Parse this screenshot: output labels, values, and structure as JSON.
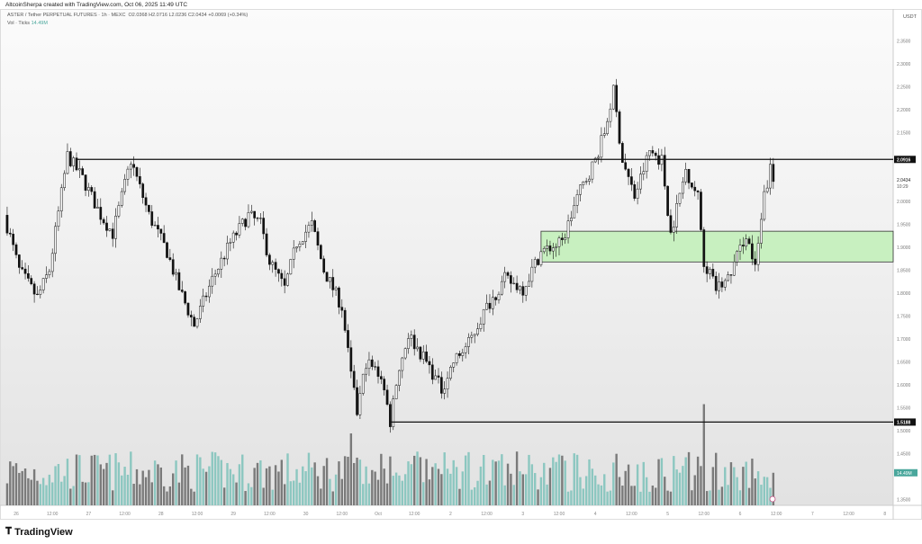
{
  "credit": "AltcoinSherpa created with TradingView.com, Oct 06, 2025 11:49 UTC",
  "legend": {
    "symbol": "ASTER / Tether PERPETUAL FUTURES · 1h · MEXC",
    "o": "O2.0368",
    "h": "H2.0716",
    "l": "L2.0236",
    "c": "C2.0434",
    "change": "+0.0069 (+0.34%)",
    "vol_label": "Vol · Ticks",
    "vol_value": "14.49M"
  },
  "footer": {
    "brand": "TradingView"
  },
  "colors": {
    "up_body": "#ffffff",
    "down_body": "#111111",
    "vol_up": "#8cc7c0",
    "vol_down": "#7a7a7a",
    "zone": "#c8f0c0",
    "zone_border": "#333333",
    "vol_badge": "#4aa79c"
  },
  "chart_data": {
    "type": "candlestick",
    "interval": "1h",
    "currency": "USDT",
    "ylim": [
      1.33,
      2.37
    ],
    "y_ticks": [
      "2.3500",
      "2.3000",
      "2.2500",
      "2.2000",
      "2.1500",
      "2.0000",
      "1.9500",
      "1.9000",
      "1.8500",
      "1.8000",
      "1.7500",
      "1.7000",
      "1.6500",
      "1.6000",
      "1.5500",
      "1.5000",
      "1.4500",
      "1.3500"
    ],
    "x_ticks": [
      [
        "2025-09-26 00:00",
        "26"
      ],
      [
        "2025-09-26 12:00",
        "12:00"
      ],
      [
        "2025-09-27 00:00",
        "27"
      ],
      [
        "2025-09-27 12:00",
        "12:00"
      ],
      [
        "2025-09-28 00:00",
        "28"
      ],
      [
        "2025-09-28 12:00",
        "12:00"
      ],
      [
        "2025-09-29 00:00",
        "29"
      ],
      [
        "2025-09-29 12:00",
        "12:00"
      ],
      [
        "2025-09-30 00:00",
        "30"
      ],
      [
        "2025-09-30 12:00",
        "12:00"
      ],
      [
        "2025-10-01 00:00",
        "Oct"
      ],
      [
        "2025-10-01 12:00",
        "12:00"
      ],
      [
        "2025-10-02 00:00",
        "2"
      ],
      [
        "2025-10-02 12:00",
        "12:00"
      ],
      [
        "2025-10-03 00:00",
        "3"
      ],
      [
        "2025-10-03 12:00",
        "12:00"
      ],
      [
        "2025-10-04 00:00",
        "4"
      ],
      [
        "2025-10-04 12:00",
        "12:00"
      ],
      [
        "2025-10-05 00:00",
        "5"
      ],
      [
        "2025-10-05 12:00",
        "12:00"
      ],
      [
        "2025-10-06 00:00",
        "6"
      ],
      [
        "2025-10-06 12:00",
        "12:00"
      ],
      [
        "2025-10-07 00:00",
        "7"
      ],
      [
        "2025-10-07 12:00",
        "12:00"
      ],
      [
        "2025-10-08 00:00",
        "8"
      ]
    ],
    "price_path": [
      [
        "2025-09-25 20:00",
        1.97
      ],
      [
        "2025-09-26 01:00",
        1.85
      ],
      [
        "2025-09-26 07:00",
        1.79
      ],
      [
        "2025-09-26 11:00",
        1.85
      ],
      [
        "2025-09-26 17:00",
        2.1
      ],
      [
        "2025-09-26 22:00",
        2.05
      ],
      [
        "2025-09-27 04:00",
        1.97
      ],
      [
        "2025-09-27 08:00",
        1.93
      ],
      [
        "2025-09-27 14:00",
        2.09
      ],
      [
        "2025-09-27 20:00",
        1.97
      ],
      [
        "2025-09-28 02:00",
        1.89
      ],
      [
        "2025-09-28 06:00",
        1.81
      ],
      [
        "2025-09-28 11:00",
        1.73
      ],
      [
        "2025-09-28 17:00",
        1.83
      ],
      [
        "2025-09-28 23:00",
        1.91
      ],
      [
        "2025-09-29 05:00",
        1.97
      ],
      [
        "2025-09-29 09:00",
        1.95
      ],
      [
        "2025-09-29 12:00",
        1.87
      ],
      [
        "2025-09-29 17:00",
        1.81
      ],
      [
        "2025-09-29 21:00",
        1.91
      ],
      [
        "2025-09-30 02:00",
        1.95
      ],
      [
        "2025-09-30 06:00",
        1.85
      ],
      [
        "2025-09-30 12:00",
        1.77
      ],
      [
        "2025-09-30 15:00",
        1.62
      ],
      [
        "2025-09-30 17:00",
        1.54
      ],
      [
        "2025-09-30 20:00",
        1.65
      ],
      [
        "2025-10-01 01:00",
        1.62
      ],
      [
        "2025-10-01 04:00",
        1.52
      ],
      [
        "2025-10-01 06:00",
        1.61
      ],
      [
        "2025-10-01 10:00",
        1.71
      ],
      [
        "2025-10-01 16:00",
        1.65
      ],
      [
        "2025-10-01 21:00",
        1.59
      ],
      [
        "2025-10-02 01:00",
        1.65
      ],
      [
        "2025-10-02 06:00",
        1.69
      ],
      [
        "2025-10-02 12:00",
        1.77
      ],
      [
        "2025-10-02 18:00",
        1.83
      ],
      [
        "2025-10-03 00:00",
        1.81
      ],
      [
        "2025-10-03 06:00",
        1.89
      ],
      [
        "2025-10-03 13:00",
        1.91
      ],
      [
        "2025-10-03 18:00",
        2.01
      ],
      [
        "2025-10-04 00:00",
        2.09
      ],
      [
        "2025-10-04 03:00",
        2.15
      ],
      [
        "2025-10-04 06:00",
        2.24
      ],
      [
        "2025-10-04 09:00",
        2.09
      ],
      [
        "2025-10-04 13:00",
        2.01
      ],
      [
        "2025-10-04 18:00",
        2.11
      ],
      [
        "2025-10-04 22:00",
        2.09
      ],
      [
        "2025-10-05 01:00",
        1.93
      ],
      [
        "2025-10-05 06:00",
        2.07
      ],
      [
        "2025-10-05 10:00",
        2.01
      ],
      [
        "2025-10-05 12:00",
        1.87
      ],
      [
        "2025-10-05 16:00",
        1.81
      ],
      [
        "2025-10-05 20:00",
        1.83
      ],
      [
        "2025-10-06 02:00",
        1.93
      ],
      [
        "2025-10-06 05:00",
        1.85
      ],
      [
        "2025-10-06 08:00",
        2.01
      ],
      [
        "2025-10-06 10:00",
        2.07
      ],
      [
        "2025-10-06 11:00",
        2.0434
      ]
    ],
    "horizontal_lines": [
      {
        "price": 2.0916,
        "label": "2.0916",
        "from": "2025-09-26 20:00"
      },
      {
        "price": 1.5188,
        "label": "1.5188",
        "from": "2025-10-01 04:00"
      }
    ],
    "zone": {
      "top": 1.935,
      "bottom": 1.868,
      "from": "2025-10-03 06:00"
    },
    "last_price": {
      "label": "2.0434",
      "countdown": "10:29"
    },
    "volume": {
      "last_label": "14.49M",
      "last_value_m": 14.49,
      "spikes": [
        [
          "2025-09-30 15:00",
          32
        ],
        [
          "2025-10-05 12:00",
          45
        ]
      ]
    }
  }
}
